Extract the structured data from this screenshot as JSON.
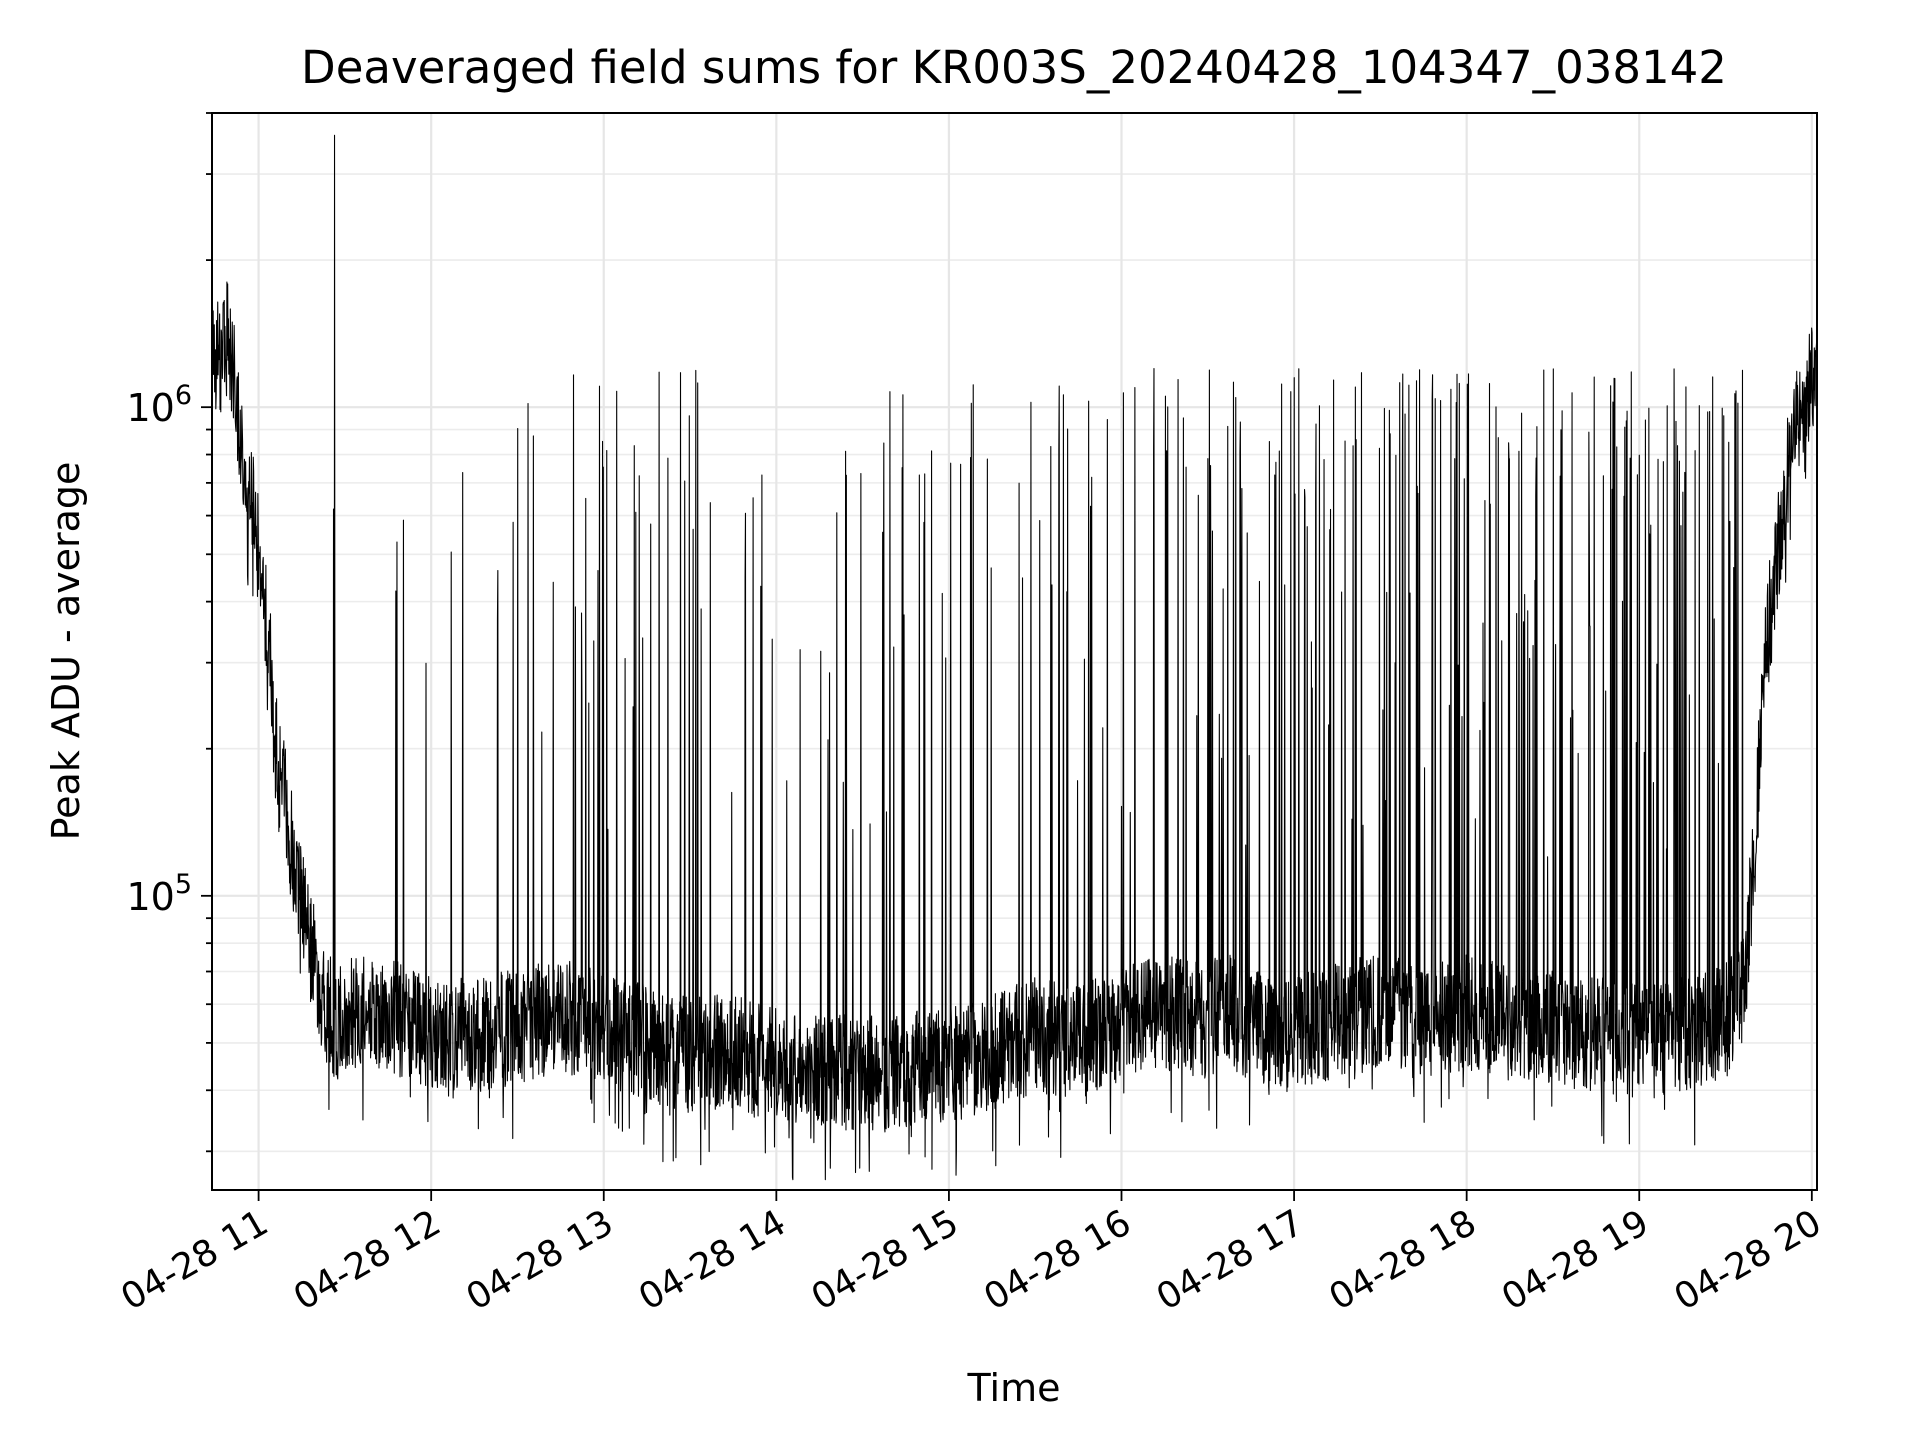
{
  "chart_data": {
    "type": "line",
    "title": "Deaveraged field sums for KR003S_20240428_104347_038142",
    "xlabel": "Time",
    "ylabel": "Peak ADU - average",
    "x_ticks": [
      "04-28 11",
      "04-28 12",
      "04-28 13",
      "04-28 14",
      "04-28 15",
      "04-28 16",
      "04-28 17",
      "04-28 18",
      "04-28 19",
      "04-28 20"
    ],
    "x_tick_hours": [
      11,
      12,
      13,
      14,
      15,
      16,
      17,
      18,
      19,
      20
    ],
    "xlim": [
      "2024-04-28 10:43",
      "2024-04-28 20:01"
    ],
    "xlim_hours": [
      10.73,
      20.03
    ],
    "y_scale": "log",
    "ylim": [
      25000,
      4000000
    ],
    "y_ticks": [
      {
        "value": 100000,
        "base": "10",
        "exp": "5"
      },
      {
        "value": 1000000,
        "base": "10",
        "exp": "6"
      }
    ],
    "grid": true,
    "line_color": "#000000",
    "series": [
      {
        "x": [
          10.72,
          10.75,
          10.78,
          10.81,
          10.84,
          10.87,
          10.9,
          10.93,
          10.96,
          11.0,
          11.05,
          11.1,
          11.15,
          11.2,
          11.25,
          11.3,
          11.35,
          11.4,
          11.45,
          11.5,
          11.55,
          11.6,
          11.7,
          11.8,
          11.9,
          12.0,
          12.25,
          12.5,
          12.75,
          13.0,
          13.25,
          13.5,
          13.75,
          14.0,
          14.25,
          14.5,
          14.75,
          15.0,
          15.25,
          15.5,
          15.75,
          16.0,
          16.25,
          16.5,
          16.6,
          16.75,
          17.0,
          17.25,
          17.5,
          17.75,
          18.0,
          18.25,
          18.5,
          18.75,
          19.0,
          19.25,
          19.5,
          19.6,
          19.66,
          19.72,
          19.78,
          19.84,
          19.9,
          19.95,
          20.0,
          20.03
        ],
        "y": [
          1600000,
          1300000,
          1200000,
          1400000,
          1300000,
          1100000,
          800000,
          600000,
          650000,
          500000,
          350000,
          200000,
          160000,
          120000,
          95000,
          80000,
          65000,
          58000,
          55000,
          56000,
          58000,
          57000,
          56000,
          56000,
          54000,
          53000,
          52000,
          54000,
          57000,
          53000,
          50000,
          47000,
          48000,
          45000,
          44000,
          43000,
          44000,
          45000,
          48000,
          52000,
          50000,
          54000,
          58000,
          55000,
          60000,
          54000,
          52000,
          56000,
          58000,
          55000,
          58000,
          55000,
          54000,
          52000,
          50000,
          52000,
          55000,
          65000,
          110000,
          280000,
          450000,
          650000,
          900000,
          1050000,
          1150000,
          1200000
        ]
      }
    ]
  }
}
